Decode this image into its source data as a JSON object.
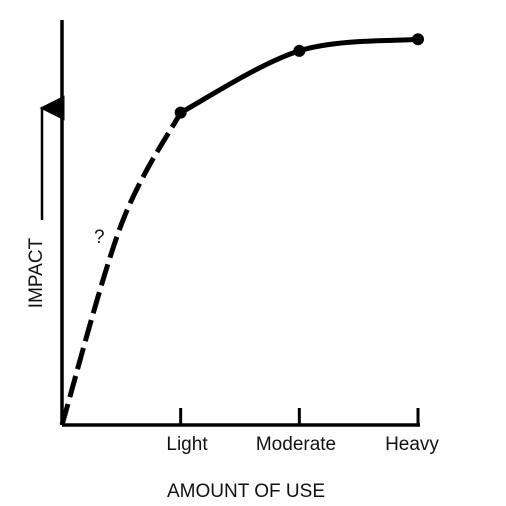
{
  "chart_data": {
    "type": "line",
    "title": "",
    "xlabel": "AMOUNT OF USE",
    "ylabel": "IMPACT",
    "categories": [
      "Light",
      "Moderate",
      "Heavy"
    ],
    "x": [
      0,
      0.5,
      1,
      2,
      3
    ],
    "y": [
      0,
      0.52,
      0.81,
      0.97,
      1.0
    ],
    "xlim": [
      0,
      3
    ],
    "ylim": [
      0,
      1.05
    ],
    "markers": [
      {
        "x": 1,
        "y": 0.81
      },
      {
        "x": 2,
        "y": 0.97
      },
      {
        "x": 3,
        "y": 1.0
      }
    ],
    "uncertain_segment": {
      "from_x": 0,
      "to_x": 1,
      "style": "dashed"
    },
    "annotation": "?",
    "grid": false,
    "legend": "none",
    "line_color": "#000000"
  }
}
